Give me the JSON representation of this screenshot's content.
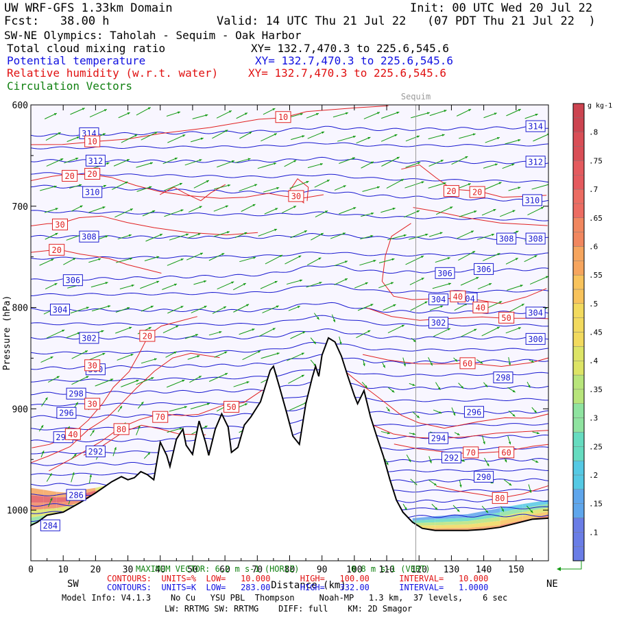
{
  "header": {
    "model": "UW WRF-GFS 1.33km Domain",
    "init": "Init: 00 UTC Wed 20 Jul 22",
    "fcst": "Fcst:   38.00 h",
    "valid": "Valid: 14 UTC Thu 21 Jul 22   (07 PDT Thu 21 Jul 22  )",
    "section": "SW-NE Olympics: Taholah - Sequim - Oak Harbor",
    "fields": [
      {
        "label": "Total cloud mixing ratio",
        "xy": "XY= 132.7,470.3 to 225.6,545.6",
        "color": "#000000"
      },
      {
        "label": "Potential temperature",
        "xy": "XY= 132.7,470.3 to 225.6,545.6",
        "color": "#1010e0"
      },
      {
        "label": "Relative humidity (w.r.t. water)",
        "xy": "XY= 132.7,470.3 to 225.6,545.6",
        "color": "#e01010"
      },
      {
        "label": "Circulation Vectors",
        "xy": "",
        "color": "#108010"
      }
    ]
  },
  "chart_data": {
    "type": "cross-section",
    "x_range": [
      0,
      160
    ],
    "y_range_hpa": [
      600,
      1050
    ],
    "x_ticks": [
      0,
      10,
      20,
      30,
      40,
      50,
      60,
      70,
      80,
      90,
      100,
      110,
      120,
      130,
      140,
      150
    ],
    "y_ticks": [
      600,
      700,
      800,
      900,
      1000
    ],
    "y_tick_labels": [
      "600",
      "700",
      "800",
      "900",
      "1000"
    ],
    "xlabel": "Distance (km)",
    "ylabel": "Pressure (hPa)",
    "left_end_label": "SW",
    "right_end_label": "NE",
    "location_marker": {
      "label": "Sequim",
      "x_km": 119
    },
    "terrain": [
      [
        0,
        1015
      ],
      [
        2,
        1012
      ],
      [
        5,
        1005
      ],
      [
        10,
        1002
      ],
      [
        15,
        993
      ],
      [
        20,
        983
      ],
      [
        25,
        972
      ],
      [
        28,
        967
      ],
      [
        30,
        970
      ],
      [
        32,
        968
      ],
      [
        34,
        962
      ],
      [
        36,
        965
      ],
      [
        38,
        970
      ],
      [
        40,
        933
      ],
      [
        42,
        946
      ],
      [
        43,
        957
      ],
      [
        45,
        930
      ],
      [
        47,
        920
      ],
      [
        48,
        936
      ],
      [
        50,
        945
      ],
      [
        51,
        928
      ],
      [
        52,
        912
      ],
      [
        54,
        933
      ],
      [
        55,
        946
      ],
      [
        57,
        920
      ],
      [
        59,
        905
      ],
      [
        61,
        918
      ],
      [
        62,
        943
      ],
      [
        64,
        938
      ],
      [
        66,
        916
      ],
      [
        68,
        908
      ],
      [
        71,
        893
      ],
      [
        74,
        862
      ],
      [
        75,
        858
      ],
      [
        77,
        880
      ],
      [
        79,
        903
      ],
      [
        81,
        927
      ],
      [
        83,
        935
      ],
      [
        85,
        895
      ],
      [
        87,
        869
      ],
      [
        88,
        858
      ],
      [
        89,
        868
      ],
      [
        90,
        847
      ],
      [
        92,
        830
      ],
      [
        94,
        834
      ],
      [
        96,
        848
      ],
      [
        98,
        868
      ],
      [
        100,
        887
      ],
      [
        101,
        895
      ],
      [
        103,
        882
      ],
      [
        105,
        908
      ],
      [
        107,
        928
      ],
      [
        109,
        947
      ],
      [
        111,
        970
      ],
      [
        113,
        990
      ],
      [
        115,
        1002
      ],
      [
        118,
        1012
      ],
      [
        121,
        1018
      ],
      [
        125,
        1020
      ],
      [
        130,
        1020
      ],
      [
        135,
        1020
      ],
      [
        140,
        1019
      ],
      [
        145,
        1017
      ],
      [
        150,
        1013
      ],
      [
        155,
        1009
      ],
      [
        160,
        1008
      ]
    ],
    "potential_temperature_K": {
      "levels": [
        314,
        312,
        310,
        308,
        306,
        304,
        302,
        300,
        298,
        296,
        294,
        292,
        290,
        286,
        284
      ],
      "pressure_at_left_hpa": [
        630,
        655,
        680,
        730,
        773,
        802,
        830,
        860,
        885,
        908,
        932,
        955,
        975,
        995,
        1010
      ],
      "pressure_at_right_hpa": [
        622,
        657,
        695,
        732,
        762,
        805,
        830,
        852,
        878,
        903,
        927,
        950,
        970,
        990,
        1005
      ],
      "labels": [
        {
          "text": "314",
          "x_km": 18,
          "p": 628
        },
        {
          "text": "314",
          "x_km": 156,
          "p": 621
        },
        {
          "text": "312",
          "x_km": 20,
          "p": 655
        },
        {
          "text": "312",
          "x_km": 156,
          "p": 656
        },
        {
          "text": "310",
          "x_km": 19,
          "p": 686
        },
        {
          "text": "310",
          "x_km": 155,
          "p": 694
        },
        {
          "text": "308",
          "x_km": 18,
          "p": 730
        },
        {
          "text": "308",
          "x_km": 147,
          "p": 732
        },
        {
          "text": "308",
          "x_km": 156,
          "p": 732
        },
        {
          "text": "306",
          "x_km": 13,
          "p": 773
        },
        {
          "text": "306",
          "x_km": 128,
          "p": 766
        },
        {
          "text": "306",
          "x_km": 140,
          "p": 762
        },
        {
          "text": "304",
          "x_km": 9,
          "p": 802
        },
        {
          "text": "304",
          "x_km": 126,
          "p": 792
        },
        {
          "text": "304",
          "x_km": 135,
          "p": 791
        },
        {
          "text": "304",
          "x_km": 156,
          "p": 805
        },
        {
          "text": "302",
          "x_km": 18,
          "p": 830
        },
        {
          "text": "302",
          "x_km": 126,
          "p": 815
        },
        {
          "text": "300",
          "x_km": 20,
          "p": 861
        },
        {
          "text": "300",
          "x_km": 156,
          "p": 831
        },
        {
          "text": "298",
          "x_km": 14,
          "p": 885
        },
        {
          "text": "298",
          "x_km": 146,
          "p": 869
        },
        {
          "text": "296",
          "x_km": 11,
          "p": 904
        },
        {
          "text": "296",
          "x_km": 137,
          "p": 903
        },
        {
          "text": "294",
          "x_km": 10,
          "p": 928
        },
        {
          "text": "294",
          "x_km": 126,
          "p": 929
        },
        {
          "text": "292",
          "x_km": 20,
          "p": 942
        },
        {
          "text": "292",
          "x_km": 130,
          "p": 948
        },
        {
          "text": "290",
          "x_km": 140,
          "p": 967
        },
        {
          "text": "286",
          "x_km": 14,
          "p": 985
        },
        {
          "text": "284",
          "x_km": 6,
          "p": 1015
        }
      ]
    },
    "relative_humidity_pct": {
      "levels": [
        10,
        20,
        30,
        40,
        50,
        60,
        70,
        80
      ],
      "labels": [
        {
          "text": "10",
          "x_km": 78,
          "p": 612
        },
        {
          "text": "10",
          "x_km": 19,
          "p": 636
        },
        {
          "text": "20",
          "x_km": 12,
          "p": 670
        },
        {
          "text": "20",
          "x_km": 19,
          "p": 668
        },
        {
          "text": "20",
          "x_km": 130,
          "p": 685
        },
        {
          "text": "20",
          "x_km": 138,
          "p": 686
        },
        {
          "text": "20",
          "x_km": 8,
          "p": 743
        },
        {
          "text": "20",
          "x_km": 36,
          "p": 828
        },
        {
          "text": "30",
          "x_km": 82,
          "p": 690
        },
        {
          "text": "30",
          "x_km": 9,
          "p": 718
        },
        {
          "text": "30",
          "x_km": 19,
          "p": 857
        },
        {
          "text": "30",
          "x_km": 19,
          "p": 895
        },
        {
          "text": "40",
          "x_km": 13,
          "p": 925
        },
        {
          "text": "40",
          "x_km": 132,
          "p": 789
        },
        {
          "text": "40",
          "x_km": 139,
          "p": 800
        },
        {
          "text": "50",
          "x_km": 62,
          "p": 898
        },
        {
          "text": "50",
          "x_km": 147,
          "p": 810
        },
        {
          "text": "60",
          "x_km": 135,
          "p": 855
        },
        {
          "text": "60",
          "x_km": 147,
          "p": 943
        },
        {
          "text": "70",
          "x_km": 40,
          "p": 908
        },
        {
          "text": "70",
          "x_km": 136,
          "p": 943
        },
        {
          "text": "80",
          "x_km": 28,
          "p": 920
        },
        {
          "text": "80",
          "x_km": 145,
          "p": 988
        }
      ]
    },
    "colorbar": {
      "unit": "g kg-1",
      "ticks": [
        0.1,
        0.15,
        0.2,
        0.25,
        0.3,
        0.35,
        0.4,
        0.45,
        0.5,
        0.55,
        0.6,
        0.65,
        0.7,
        0.75,
        0.8
      ],
      "tick_labels": [
        ".1",
        ".15",
        ".2",
        ".25",
        ".3",
        ".35",
        ".4",
        ".45",
        ".5",
        ".55",
        ".6",
        ".65",
        ".7",
        ".75",
        ".8"
      ],
      "range": [
        0.05,
        0.85
      ],
      "colors": [
        "#6a7de6",
        "#5fa6ec",
        "#55c9e4",
        "#66dcc0",
        "#8fe3a0",
        "#b8e57b",
        "#dde466",
        "#f2da5e",
        "#f8c35c",
        "#f6a55e",
        "#f1875f",
        "#ec6c62",
        "#e45a5e",
        "#d94e56",
        "#cc4450"
      ]
    },
    "annotations": {
      "max_vector_horiz": "MAXIMUM VECTOR: 6.2 m s-1 (HORIZ)",
      "max_vector_vert": "0.8 m s-1 (VERT)",
      "rh_contours": "CONTOURS:  UNITS=%  LOW=   10.000      HIGH=   100.00      INTERVAL=   10.000",
      "theta_contours": "CONTOURS:  UNITS=K  LOW=   283.00      HIGH=   332.00      INTERVAL=   1.0000"
    }
  },
  "footer": {
    "model_info": "Model Info: V4.1.3    No Cu   YSU PBL  Thompson     Noah-MP   1.3 km,  37 levels,    6 sec",
    "radiation": "LW: RRTMG SW: RRTMG    DIFF: full    KM: 2D Smagor"
  }
}
